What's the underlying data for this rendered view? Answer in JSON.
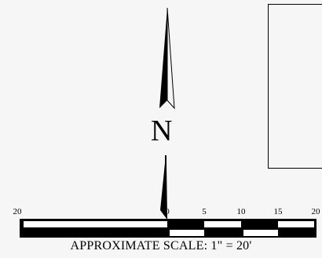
{
  "north_arrow": {
    "letter": "N",
    "icon": "north-arrow-icon"
  },
  "parcel": {
    "icon": "parcel-boundary"
  },
  "scale_bar": {
    "tick_labels": [
      "20",
      "0",
      "5",
      "10",
      "15",
      "20"
    ],
    "caption": "APPROXIMATE SCALE: 1\" = 20'"
  }
}
